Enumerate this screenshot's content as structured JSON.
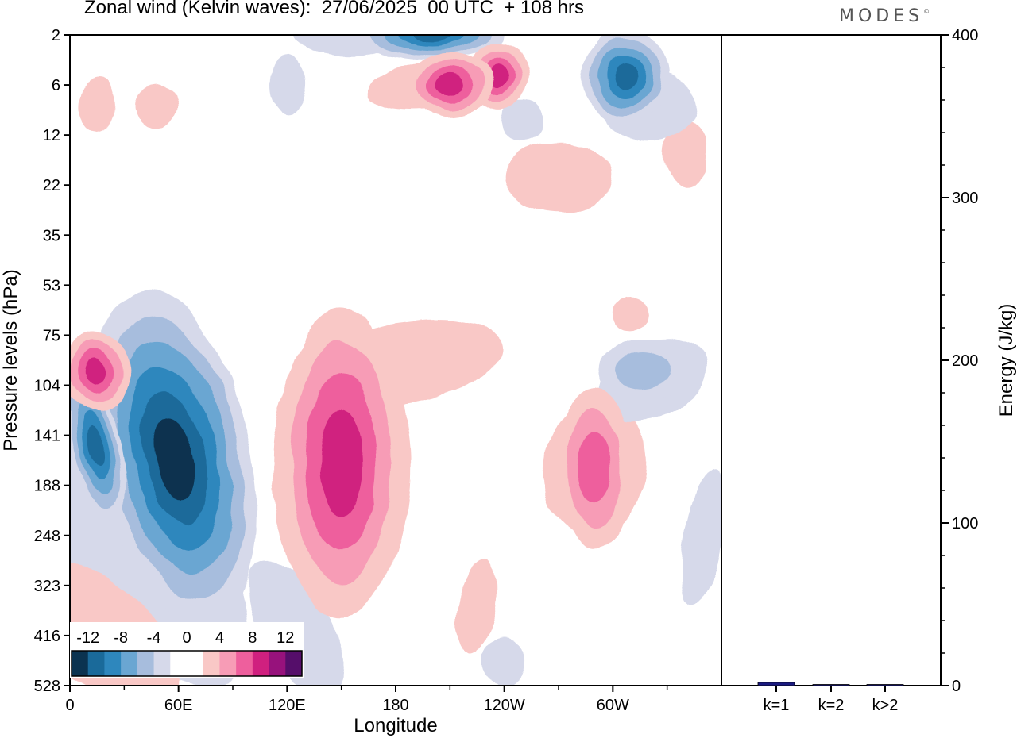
{
  "title": "Zonal wind (Kelvin waves):  27/06/2025  00 UTC  + 108 hrs",
  "brand": "MODES",
  "colors": {
    "neg6": "#0b3350",
    "neg5": "#1a6a9a",
    "neg4": "#2e87bd",
    "neg3": "#6aa6d2",
    "neg2": "#a7bddd",
    "neg1": "#d6d9ea",
    "zero": "#ffffff",
    "pos1": "#f9c8c6",
    "pos2": "#f79cb6",
    "pos3": "#ee5f9d",
    "pos4": "#d0207f",
    "pos5": "#97127c",
    "pos6": "#550e6a",
    "energy_bar": "#1a1a80",
    "axis": "#000000"
  },
  "chart_data": [
    {
      "type": "heatmap",
      "title": "Zonal wind (Kelvin waves):  27/06/2025  00 UTC  + 108 hrs",
      "xlabel": "Longitude",
      "ylabel": "Pressure levels (hPa)",
      "x_ticks": [
        "0",
        "60E",
        "120E",
        "180",
        "120W",
        "60W"
      ],
      "x_tick_degrees": [
        0,
        60,
        120,
        180,
        240,
        300
      ],
      "xlim": [
        0,
        360
      ],
      "y_ticks": [
        "2",
        "6",
        "12",
        "22",
        "35",
        "53",
        "75",
        "104",
        "141",
        "188",
        "248",
        "323",
        "416",
        "528"
      ],
      "y_inverted": true,
      "colorbar": {
        "labels": [
          "-12",
          "-8",
          "-4",
          "0",
          "4",
          "8",
          "12"
        ],
        "levels": [
          -14,
          -12,
          -10,
          -8,
          -6,
          -4,
          -2,
          0,
          2,
          4,
          6,
          8,
          10,
          12,
          14
        ],
        "location": "bottom-left inset"
      },
      "features": [
        {
          "sign": "negative",
          "lon": 58,
          "level_hPa": 160,
          "peak": -11
        },
        {
          "sign": "negative",
          "lon": 14,
          "level_hPa": 150,
          "peak": -9
        },
        {
          "sign": "positive",
          "lon": 150,
          "level_hPa": 165,
          "peak": 7
        },
        {
          "sign": "positive",
          "lon": 290,
          "level_hPa": 170,
          "peak": 5
        },
        {
          "sign": "positive",
          "lon": 15,
          "level_hPa": 95,
          "peak": 7
        },
        {
          "sign": "negative",
          "lon": 200,
          "level_hPa": 2,
          "peak": -9
        },
        {
          "sign": "negative",
          "lon": 307,
          "level_hPa": 5,
          "peak": -10
        },
        {
          "sign": "positive",
          "lon": 237,
          "level_hPa": 5,
          "peak": 8
        },
        {
          "sign": "positive",
          "lon": 210,
          "level_hPa": 6,
          "peak": 7
        },
        {
          "sign": "negative",
          "lon": 317,
          "level_hPa": 95,
          "peak": -4
        }
      ]
    },
    {
      "type": "bar",
      "ylabel": "Energy (J/kg)",
      "ylim": [
        0,
        400
      ],
      "y_ticks": [
        "0",
        "100",
        "200",
        "300",
        "400"
      ],
      "categories": [
        "k=1",
        "k=2",
        "k>2"
      ],
      "values": [
        2,
        0.5,
        0.5
      ]
    }
  ]
}
